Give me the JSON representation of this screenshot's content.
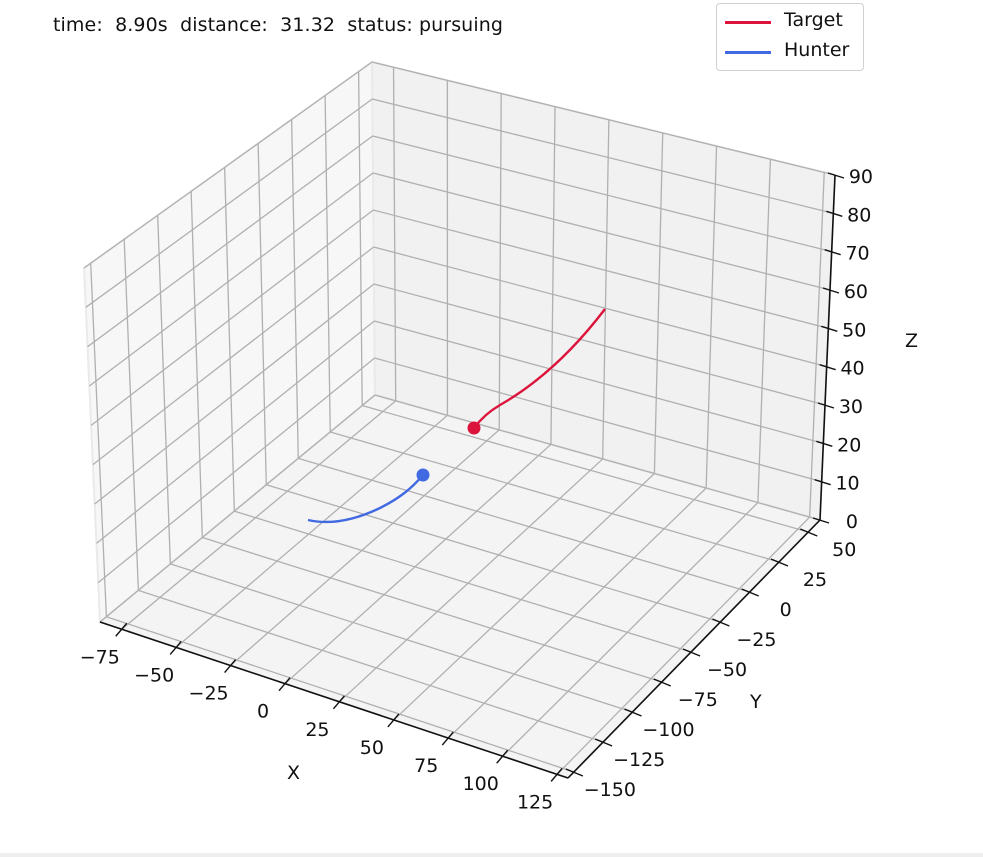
{
  "status": {
    "time_label": "time:",
    "time_value": "8.90s",
    "distance_label": "distance:",
    "distance_value": "31.32",
    "status_label": "status:",
    "status_value": "pursuing",
    "full_text": "time:  8.90s  distance:  31.32  status: pursuing"
  },
  "legend": {
    "items": [
      {
        "label": "Target",
        "color": "#dc143c"
      },
      {
        "label": "Hunter",
        "color": "#4169e1"
      }
    ]
  },
  "axes": {
    "x": {
      "label": "X",
      "ticks": [
        "−75",
        "−50",
        "−25",
        "0",
        "25",
        "50",
        "75",
        "100",
        "125"
      ]
    },
    "y": {
      "label": "Y",
      "ticks": [
        "−150",
        "−125",
        "−100",
        "−75",
        "−50",
        "−25",
        "0",
        "25",
        "50"
      ]
    },
    "z": {
      "label": "Z",
      "ticks": [
        "0",
        "10",
        "20",
        "30",
        "40",
        "50",
        "60",
        "70",
        "80",
        "90"
      ]
    }
  },
  "colors": {
    "target": "#dc143c",
    "hunter": "#4169e1",
    "grid": "#b0b0b0",
    "pane_left": "#f7f7f7",
    "pane_back": "#f1f1f1",
    "pane_floor": "#f4f4f4"
  },
  "chart_data": {
    "type": "line",
    "projection": "3d",
    "title": "",
    "annotation": "time:  8.90s  distance:  31.32  status: pursuing",
    "xlabel": "X",
    "ylabel": "Y",
    "zlabel": "Z",
    "xlim": [
      -85,
      130
    ],
    "ylim": [
      -155,
      60
    ],
    "zlim": [
      0,
      90
    ],
    "xticks": [
      -75,
      -50,
      -25,
      0,
      25,
      50,
      75,
      100,
      125
    ],
    "yticks": [
      -150,
      -125,
      -100,
      -75,
      -50,
      -25,
      0,
      25,
      50
    ],
    "zticks": [
      0,
      10,
      20,
      30,
      40,
      50,
      60,
      70,
      80,
      90
    ],
    "grid": true,
    "legend_position": "upper right",
    "series": [
      {
        "name": "Target",
        "color": "#dc143c",
        "trajectory_approx": [
          {
            "x": -5,
            "y": 40,
            "z": 50
          },
          {
            "x": -15,
            "y": 30,
            "z": 38
          },
          {
            "x": -25,
            "y": 20,
            "z": 27
          },
          {
            "x": -35,
            "y": 10,
            "z": 19
          }
        ],
        "current_position_approx": {
          "x": -35,
          "y": 10,
          "z": 19
        }
      },
      {
        "name": "Hunter",
        "color": "#4169e1",
        "trajectory_approx": [
          {
            "x": -60,
            "y": -40,
            "z": 0
          },
          {
            "x": -50,
            "y": -30,
            "z": 3
          },
          {
            "x": -40,
            "y": -20,
            "z": 8
          },
          {
            "x": -35,
            "y": -15,
            "z": 12
          }
        ],
        "current_position_approx": {
          "x": -35,
          "y": -15,
          "z": 12
        }
      }
    ],
    "metrics": {
      "time_s": 8.9,
      "distance": 31.32,
      "status": "pursuing"
    }
  }
}
